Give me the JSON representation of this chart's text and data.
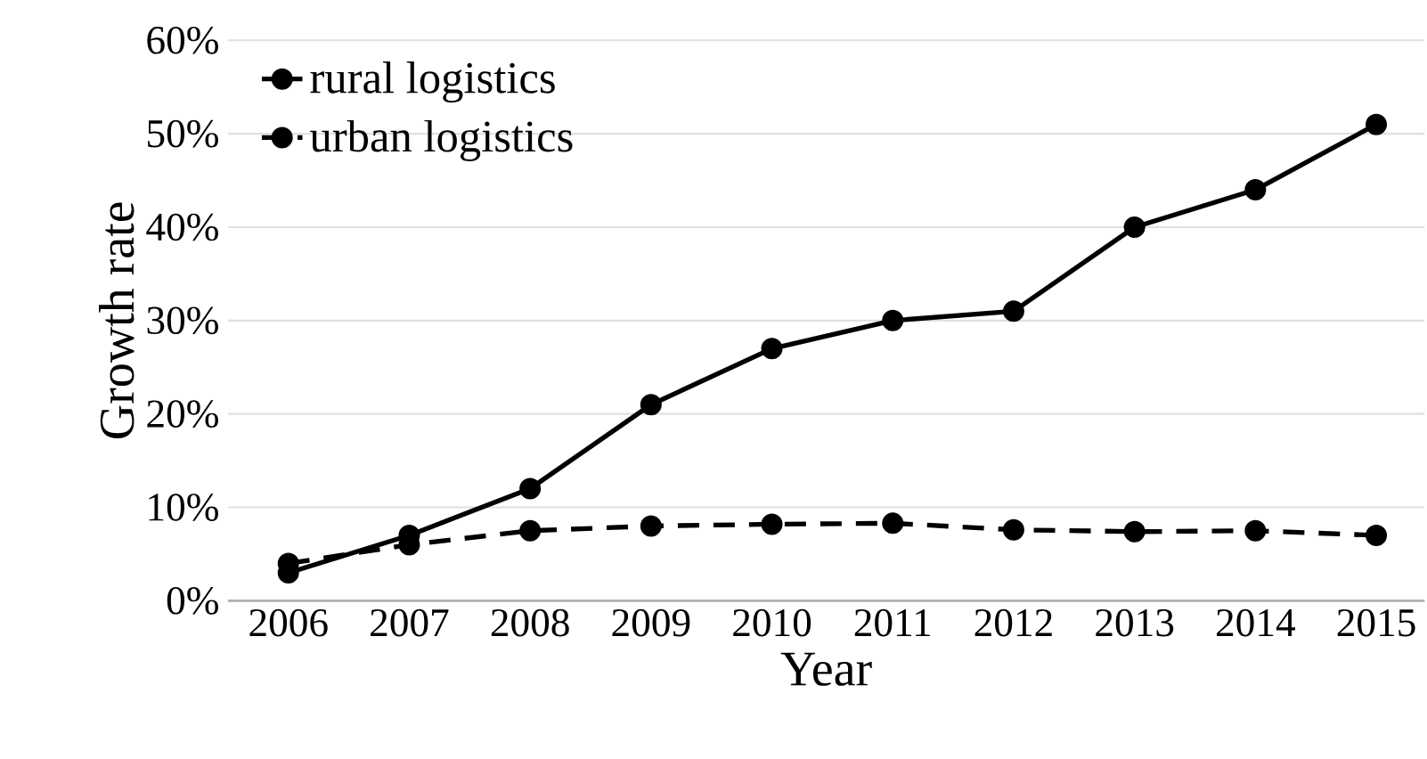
{
  "chart_data": {
    "type": "line",
    "xlabel": "Year",
    "ylabel": "Growth rate",
    "categories": [
      "2006",
      "2007",
      "2008",
      "2009",
      "2010",
      "2011",
      "2012",
      "2013",
      "2014",
      "2015"
    ],
    "series": [
      {
        "name": "rural logistics",
        "color": "#000000",
        "line_style": "solid",
        "values": [
          3,
          7,
          12,
          21,
          27,
          30,
          31,
          40,
          44,
          51
        ]
      },
      {
        "name": "urban logistics",
        "color": "#000000",
        "line_style": "dashed",
        "values": [
          4,
          6,
          7.5,
          8,
          8.2,
          8.3,
          7.6,
          7.4,
          7.5,
          7
        ]
      }
    ],
    "ylim": [
      0,
      60
    ],
    "yticks": [
      {
        "value": 0,
        "label": "0%"
      },
      {
        "value": 10,
        "label": "10%"
      },
      {
        "value": 20,
        "label": "20%"
      },
      {
        "value": 30,
        "label": "30%"
      },
      {
        "value": 40,
        "label": "40%"
      },
      {
        "value": 50,
        "label": "50%"
      },
      {
        "value": 60,
        "label": "60%"
      }
    ],
    "grid": "y",
    "legend": "top left",
    "marker": "circle"
  }
}
